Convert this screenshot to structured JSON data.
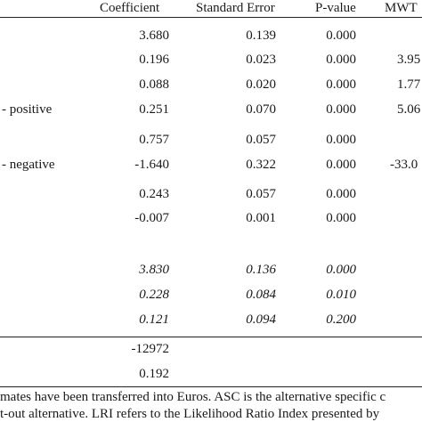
{
  "header": {
    "coefficient": "Coefficient",
    "standard_error": "Standard Error",
    "p_value": "P-value",
    "mwt": "MWT"
  },
  "rows": [
    {
      "label": "",
      "coef": "3.680",
      "se": "0.139",
      "p": "0.000",
      "mwt": ""
    },
    {
      "label": "",
      "coef": "0.196",
      "se": "0.023",
      "p": "0.000",
      "mwt": "3.95"
    },
    {
      "label": "",
      "coef": "0.088",
      "se": "0.020",
      "p": "0.000",
      "mwt": "1.77"
    },
    {
      "label": "- positive",
      "coef": "0.251",
      "se": "0.070",
      "p": "0.000",
      "mwt": "5.06"
    },
    {
      "label": "",
      "coef": "0.757",
      "se": "0.057",
      "p": "0.000",
      "mwt": ""
    },
    {
      "label": "- negative",
      "coef": "-1.640",
      "se": "0.322",
      "p": "0.000",
      "mwt": "-33.0"
    },
    {
      "label": "",
      "coef": "0.243",
      "se": "0.057",
      "p": "0.000",
      "mwt": ""
    },
    {
      "label": "",
      "coef": "-0.007",
      "se": "0.001",
      "p": "0.000",
      "mwt": ""
    },
    {
      "label": "",
      "coef": "3.830",
      "se": "0.136",
      "p": "0.000",
      "mwt": ""
    },
    {
      "label": "",
      "coef": "0.228",
      "se": "0.084",
      "p": "0.010",
      "mwt": ""
    },
    {
      "label": "",
      "coef": "0.121",
      "se": "0.094",
      "p": "0.200",
      "mwt": ""
    }
  ],
  "summary": {
    "loglik": "-12972",
    "lri": "0.192"
  },
  "notes": [
    "mates have been transferred into Euros. ASC is the alternative specific c",
    "t-out alternative. LRI refers to the Likelihood Ratio Index presented by"
  ]
}
